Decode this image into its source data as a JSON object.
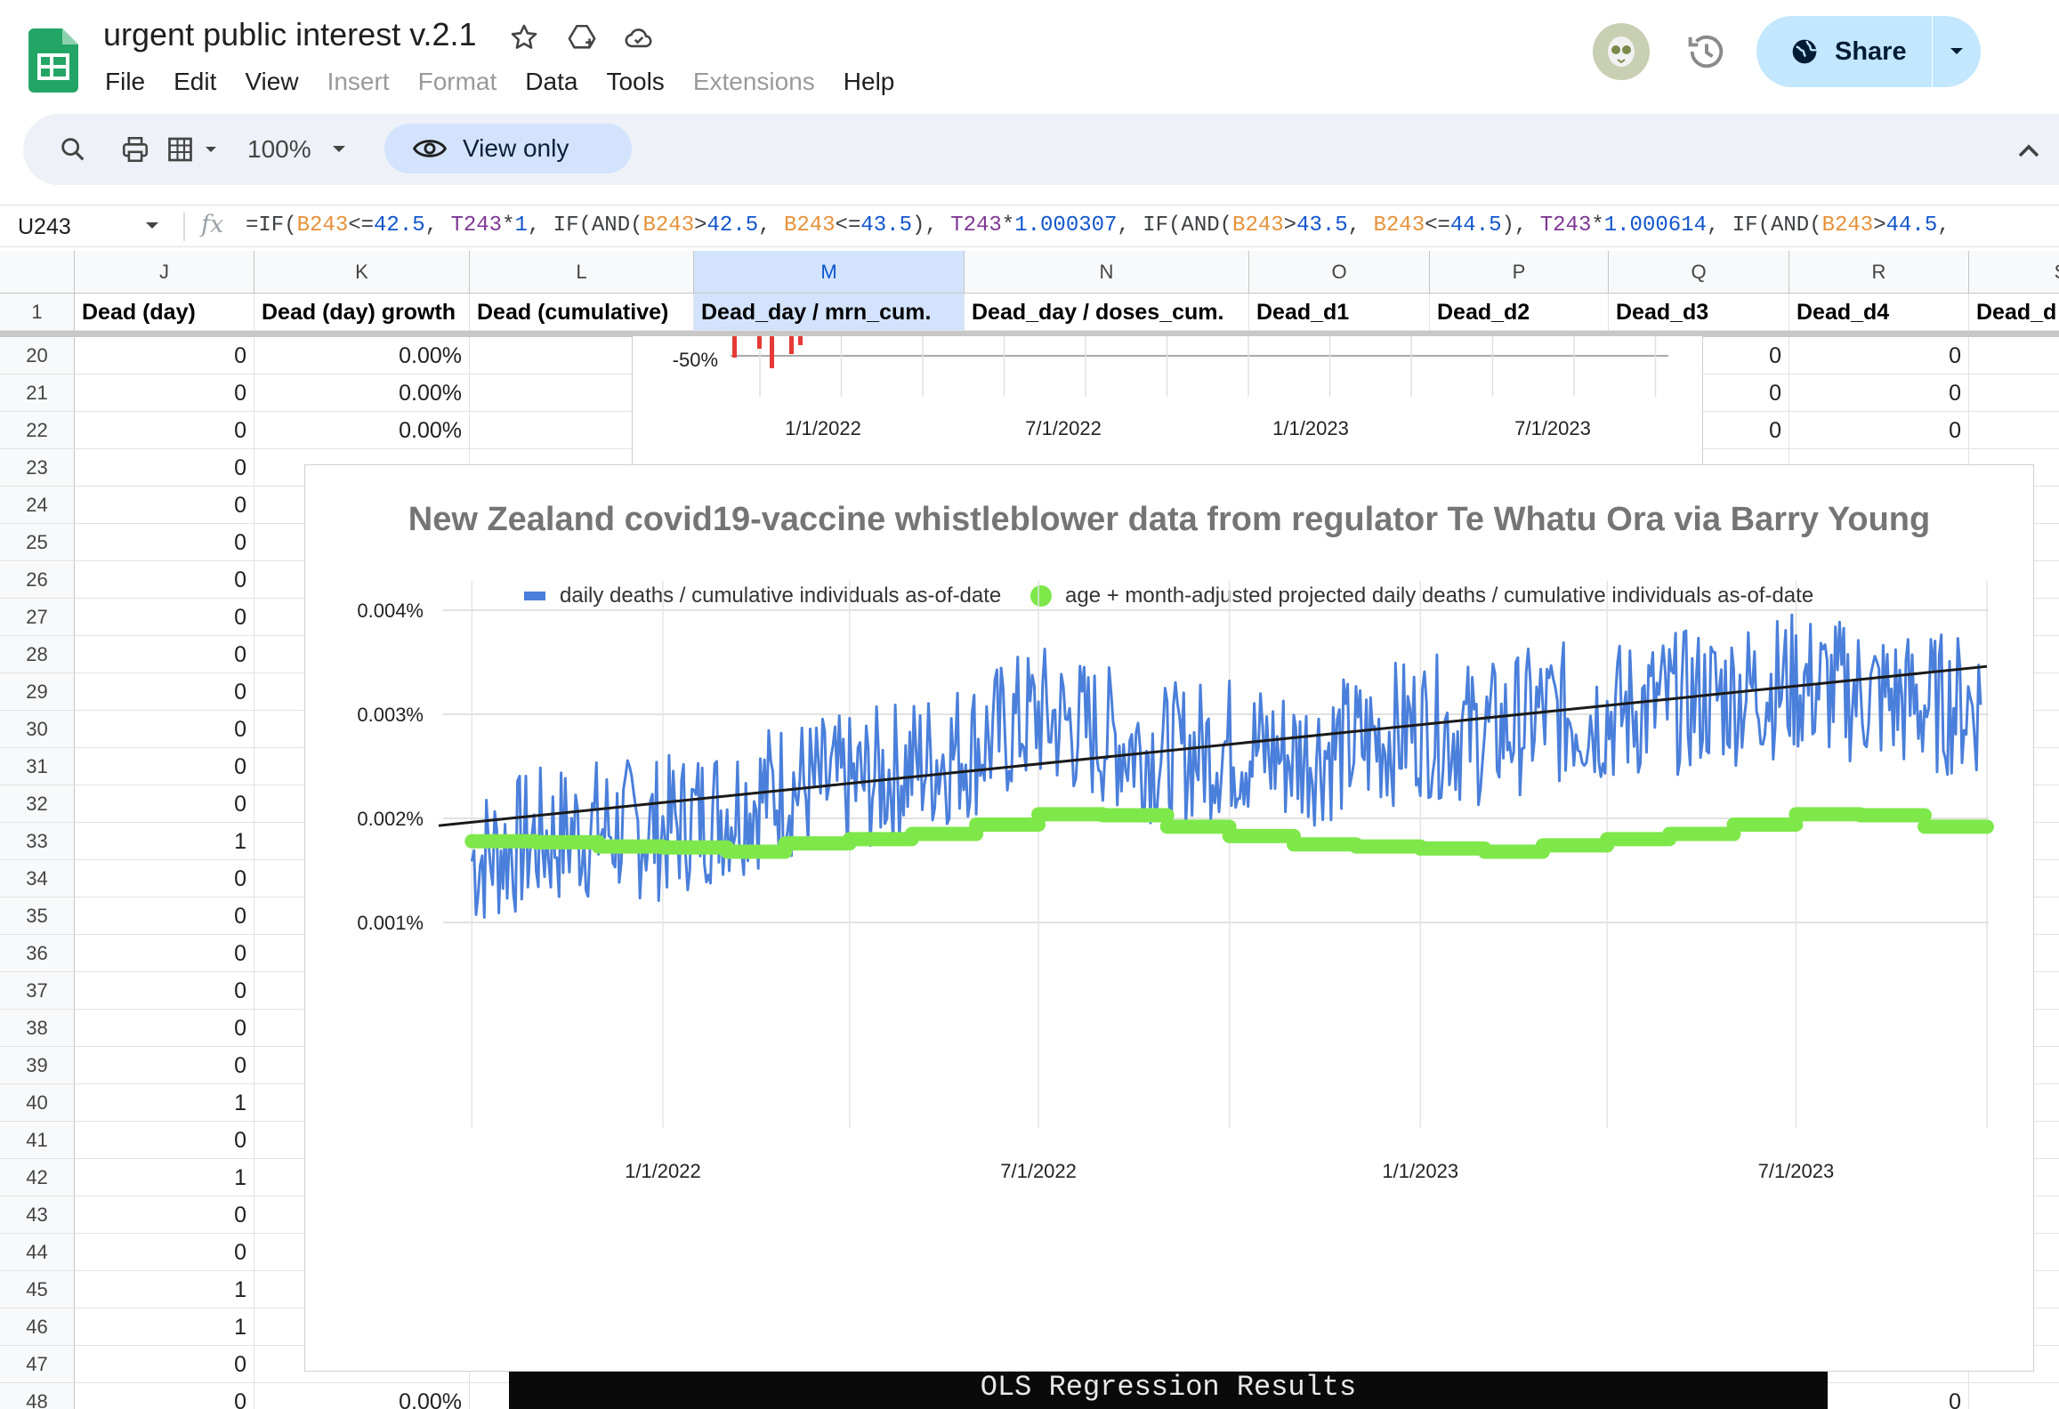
{
  "app": {
    "title": "urgent public interest v.2.1",
    "menu": [
      "File",
      "Edit",
      "View",
      "Insert",
      "Format",
      "Data",
      "Tools",
      "Extensions",
      "Help"
    ],
    "menu_disabled": [
      false,
      false,
      false,
      true,
      true,
      false,
      false,
      true,
      false
    ],
    "share_label": "Share"
  },
  "toolbar": {
    "zoom": "100%",
    "view_only": "View only"
  },
  "formula_bar": {
    "cell_ref": "U243",
    "fx": "fx",
    "formula_parts": [
      {
        "t": "=IF(",
        "c": ""
      },
      {
        "t": "B243",
        "c": "a"
      },
      {
        "t": "<=",
        "c": ""
      },
      {
        "t": "42.5",
        "c": "n"
      },
      {
        "t": ", ",
        "c": ""
      },
      {
        "t": "T243",
        "c": "b"
      },
      {
        "t": "*",
        "c": ""
      },
      {
        "t": "1",
        "c": "n"
      },
      {
        "t": ", IF(AND(",
        "c": ""
      },
      {
        "t": "B243",
        "c": "a"
      },
      {
        "t": ">",
        "c": ""
      },
      {
        "t": "42.5",
        "c": "n"
      },
      {
        "t": ", ",
        "c": ""
      },
      {
        "t": "B243",
        "c": "a"
      },
      {
        "t": "<=",
        "c": ""
      },
      {
        "t": "43.5",
        "c": "n"
      },
      {
        "t": "), ",
        "c": ""
      },
      {
        "t": "T243",
        "c": "b"
      },
      {
        "t": "*",
        "c": ""
      },
      {
        "t": "1.000307",
        "c": "n"
      },
      {
        "t": ", IF(AND(",
        "c": ""
      },
      {
        "t": "B243",
        "c": "a"
      },
      {
        "t": ">",
        "c": ""
      },
      {
        "t": "43.5",
        "c": "n"
      },
      {
        "t": ", ",
        "c": ""
      },
      {
        "t": "B243",
        "c": "a"
      },
      {
        "t": "<=",
        "c": ""
      },
      {
        "t": "44.5",
        "c": "n"
      },
      {
        "t": "), ",
        "c": ""
      },
      {
        "t": "T243",
        "c": "b"
      },
      {
        "t": "*",
        "c": ""
      },
      {
        "t": "1.000614",
        "c": "n"
      },
      {
        "t": ", IF(AND(",
        "c": ""
      },
      {
        "t": "B243",
        "c": "a"
      },
      {
        "t": ">",
        "c": ""
      },
      {
        "t": "44.5",
        "c": "n"
      },
      {
        "t": ",",
        "c": ""
      }
    ]
  },
  "sheet": {
    "columns": [
      "J",
      "K",
      "L",
      "M",
      "N",
      "O",
      "P",
      "Q",
      "R",
      "S"
    ],
    "selected_column": "M",
    "header_row_number": "1",
    "headers": [
      "Dead (day)",
      "Dead (day) growth",
      "Dead (cumulative)",
      "Dead_day / mrn_cum.",
      "Dead_day / doses_cum.",
      "Dead_d1",
      "Dead_d2",
      "Dead_d3",
      "Dead_d4",
      "Dead_d"
    ],
    "rows": [
      {
        "n": "20",
        "j": "0",
        "k": "0.00%",
        "q": "0",
        "r": "0"
      },
      {
        "n": "21",
        "j": "0",
        "k": "0.00%",
        "q": "0",
        "r": "0"
      },
      {
        "n": "22",
        "j": "0",
        "k": "0.00%",
        "q": "0",
        "r": "0"
      },
      {
        "n": "23",
        "j": "0",
        "k": "",
        "q": "",
        "r": ""
      },
      {
        "n": "24",
        "j": "0",
        "k": "",
        "q": "",
        "r": ""
      },
      {
        "n": "25",
        "j": "0",
        "k": "",
        "q": "",
        "r": ""
      },
      {
        "n": "26",
        "j": "0",
        "k": "",
        "q": "",
        "r": ""
      },
      {
        "n": "27",
        "j": "0",
        "k": "",
        "q": "",
        "r": ""
      },
      {
        "n": "28",
        "j": "0",
        "k": "",
        "q": "",
        "r": ""
      },
      {
        "n": "29",
        "j": "0",
        "k": "",
        "q": "",
        "r": ""
      },
      {
        "n": "30",
        "j": "0",
        "k": "",
        "q": "",
        "r": ""
      },
      {
        "n": "31",
        "j": "0",
        "k": "",
        "q": "",
        "r": ""
      },
      {
        "n": "32",
        "j": "0",
        "k": "",
        "q": "",
        "r": ""
      },
      {
        "n": "33",
        "j": "1",
        "k": "",
        "q": "",
        "r": ""
      },
      {
        "n": "34",
        "j": "0",
        "k": "",
        "q": "",
        "r": ""
      },
      {
        "n": "35",
        "j": "0",
        "k": "",
        "q": "",
        "r": ""
      },
      {
        "n": "36",
        "j": "0",
        "k": "",
        "q": "",
        "r": ""
      },
      {
        "n": "37",
        "j": "0",
        "k": "",
        "q": "",
        "r": ""
      },
      {
        "n": "38",
        "j": "0",
        "k": "",
        "q": "",
        "r": ""
      },
      {
        "n": "39",
        "j": "0",
        "k": "",
        "q": "",
        "r": ""
      },
      {
        "n": "40",
        "j": "1",
        "k": "",
        "q": "",
        "r": ""
      },
      {
        "n": "41",
        "j": "0",
        "k": "",
        "q": "",
        "r": ""
      },
      {
        "n": "42",
        "j": "1",
        "k": "",
        "q": "",
        "r": ""
      },
      {
        "n": "43",
        "j": "0",
        "k": "",
        "q": "",
        "r": ""
      },
      {
        "n": "44",
        "j": "0",
        "k": "",
        "q": "",
        "r": ""
      },
      {
        "n": "45",
        "j": "1",
        "k": "",
        "q": "",
        "r": ""
      },
      {
        "n": "46",
        "j": "1",
        "k": "",
        "q": "",
        "r": ""
      },
      {
        "n": "47",
        "j": "0",
        "k": "",
        "q": "",
        "r": ""
      },
      {
        "n": "48",
        "j": "0",
        "k": "0.00%",
        "q": "",
        "r": "0"
      }
    ]
  },
  "small_chart": {
    "y_tick": "-50%",
    "x_ticks": [
      "1/1/2022",
      "7/1/2022",
      "1/1/2023",
      "7/1/2023"
    ],
    "bar_color": "#e53935"
  },
  "ols_banner": "OLS Regression Results",
  "chart_data": {
    "type": "line",
    "title": "New Zealand covid19-vaccine whistleblower data from regulator Te Whatu Ora via Barry Young",
    "xlabel": "",
    "ylabel": "",
    "x_range": [
      "2021-09-15",
      "2023-10-01"
    ],
    "x_ticks": [
      "1/1/2022",
      "7/1/2022",
      "1/1/2023",
      "7/1/2023"
    ],
    "y_ticks": [
      "0.001%",
      "0.002%",
      "0.003%",
      "0.004%"
    ],
    "ylim": [
      0.0005,
      0.0042
    ],
    "grid": true,
    "legend_position": "top",
    "series": [
      {
        "name": "daily deaths / cumulative individuals as-of-date",
        "color": "#4a7fdb",
        "style": "line",
        "note_values": "noisy daily series; approximate monthly mean level (%)",
        "monthly_x": [
          "2021-10",
          "2021-11",
          "2021-12",
          "2022-01",
          "2022-02",
          "2022-03",
          "2022-04",
          "2022-05",
          "2022-06",
          "2022-07",
          "2022-08",
          "2022-09",
          "2022-10",
          "2022-11",
          "2022-12",
          "2023-01",
          "2023-02",
          "2023-03",
          "2023-04",
          "2023-05",
          "2023-06",
          "2023-07",
          "2023-08",
          "2023-09"
        ],
        "monthly_values": [
          0.0016,
          0.0018,
          0.0019,
          0.0019,
          0.0021,
          0.0023,
          0.0023,
          0.0025,
          0.0027,
          0.003,
          0.0028,
          0.0026,
          0.0027,
          0.0026,
          0.0027,
          0.0029,
          0.0028,
          0.003,
          0.003,
          0.0031,
          0.0032,
          0.0033,
          0.0032,
          0.0031
        ]
      },
      {
        "name": "age + month-adjusted projected daily deaths / cumulative individuals as-of-date",
        "color": "#7ee84a",
        "style": "thick-step",
        "monthly_x": [
          "2021-10",
          "2021-11",
          "2021-12",
          "2022-01",
          "2022-02",
          "2022-03",
          "2022-04",
          "2022-05",
          "2022-06",
          "2022-07",
          "2022-08",
          "2022-09",
          "2022-10",
          "2022-11",
          "2022-12",
          "2023-01",
          "2023-02",
          "2023-03",
          "2023-04",
          "2023-05",
          "2023-06",
          "2023-07",
          "2023-08",
          "2023-09"
        ],
        "monthly_values": [
          0.00178,
          0.00177,
          0.00173,
          0.00172,
          0.00168,
          0.00176,
          0.0018,
          0.00185,
          0.00194,
          0.00204,
          0.00203,
          0.00192,
          0.00183,
          0.00175,
          0.00173,
          0.00171,
          0.00168,
          0.00174,
          0.0018,
          0.00185,
          0.00194,
          0.00204,
          0.00203,
          0.00192
        ]
      },
      {
        "name": "",
        "color": "#1a1a1a",
        "style": "trendline",
        "x": [
          "2021-09-15",
          "2023-10-01"
        ],
        "values": [
          0.00193,
          0.00346
        ]
      }
    ]
  }
}
